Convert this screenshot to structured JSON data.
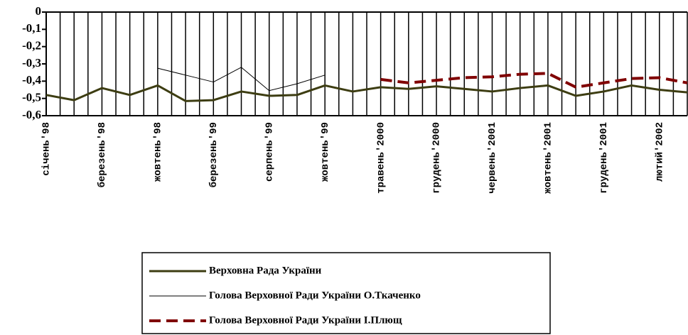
{
  "chart_data": {
    "type": "line",
    "categories": [
      "січень'98",
      null,
      "березень'98",
      null,
      "жовтень'98",
      null,
      "березень'99",
      null,
      "серпень'99",
      null,
      "жовтень'99",
      null,
      "травень'2000",
      null,
      "грудень'2000",
      null,
      "червень'2001",
      null,
      "жовтень'2001",
      null,
      "грудень'2001",
      null,
      "лютий'2002",
      null
    ],
    "series": [
      {
        "name": "Верховна Рада України",
        "color": "#3d3d12",
        "style": "solid",
        "width": 3,
        "values": [
          -0.48,
          -0.51,
          -0.44,
          -0.48,
          -0.425,
          -0.515,
          -0.51,
          -0.46,
          -0.485,
          -0.48,
          -0.425,
          -0.46,
          -0.435,
          -0.445,
          -0.43,
          -0.445,
          -0.46,
          -0.44,
          -0.425,
          -0.485,
          -0.46,
          -0.425,
          -0.45,
          -0.465
        ]
      },
      {
        "name": "Голова Верховної Ради України О.Ткаченко",
        "color": "#000000",
        "style": "solid",
        "width": 1,
        "values": [
          null,
          null,
          null,
          null,
          -0.325,
          -0.365,
          -0.405,
          -0.32,
          -0.455,
          -0.415,
          -0.365,
          null,
          null,
          null,
          null,
          null,
          null,
          null,
          null,
          null,
          null,
          null,
          null,
          null
        ]
      },
      {
        "name": "Голова Верховної Ради України І.Плющ",
        "color": "#800000",
        "style": "dashed",
        "width": 4,
        "values": [
          null,
          null,
          null,
          null,
          null,
          null,
          null,
          null,
          null,
          null,
          null,
          null,
          -0.39,
          -0.41,
          -0.395,
          -0.38,
          -0.375,
          -0.36,
          -0.355,
          -0.435,
          -0.41,
          -0.385,
          -0.38,
          -0.41
        ]
      }
    ],
    "ylim": [
      -0.6,
      0
    ],
    "yticks": [
      0,
      {
        "value": -0.1,
        "label": "-0,1"
      },
      {
        "value": -0.2,
        "label": "-0,2"
      },
      {
        "value": -0.3,
        "label": "-0,3"
      },
      {
        "value": -0.4,
        "label": "-0,4"
      },
      {
        "value": -0.5,
        "label": "-0,5"
      },
      {
        "value": -0.6,
        "label": "-0,6"
      }
    ],
    "grid": false
  }
}
